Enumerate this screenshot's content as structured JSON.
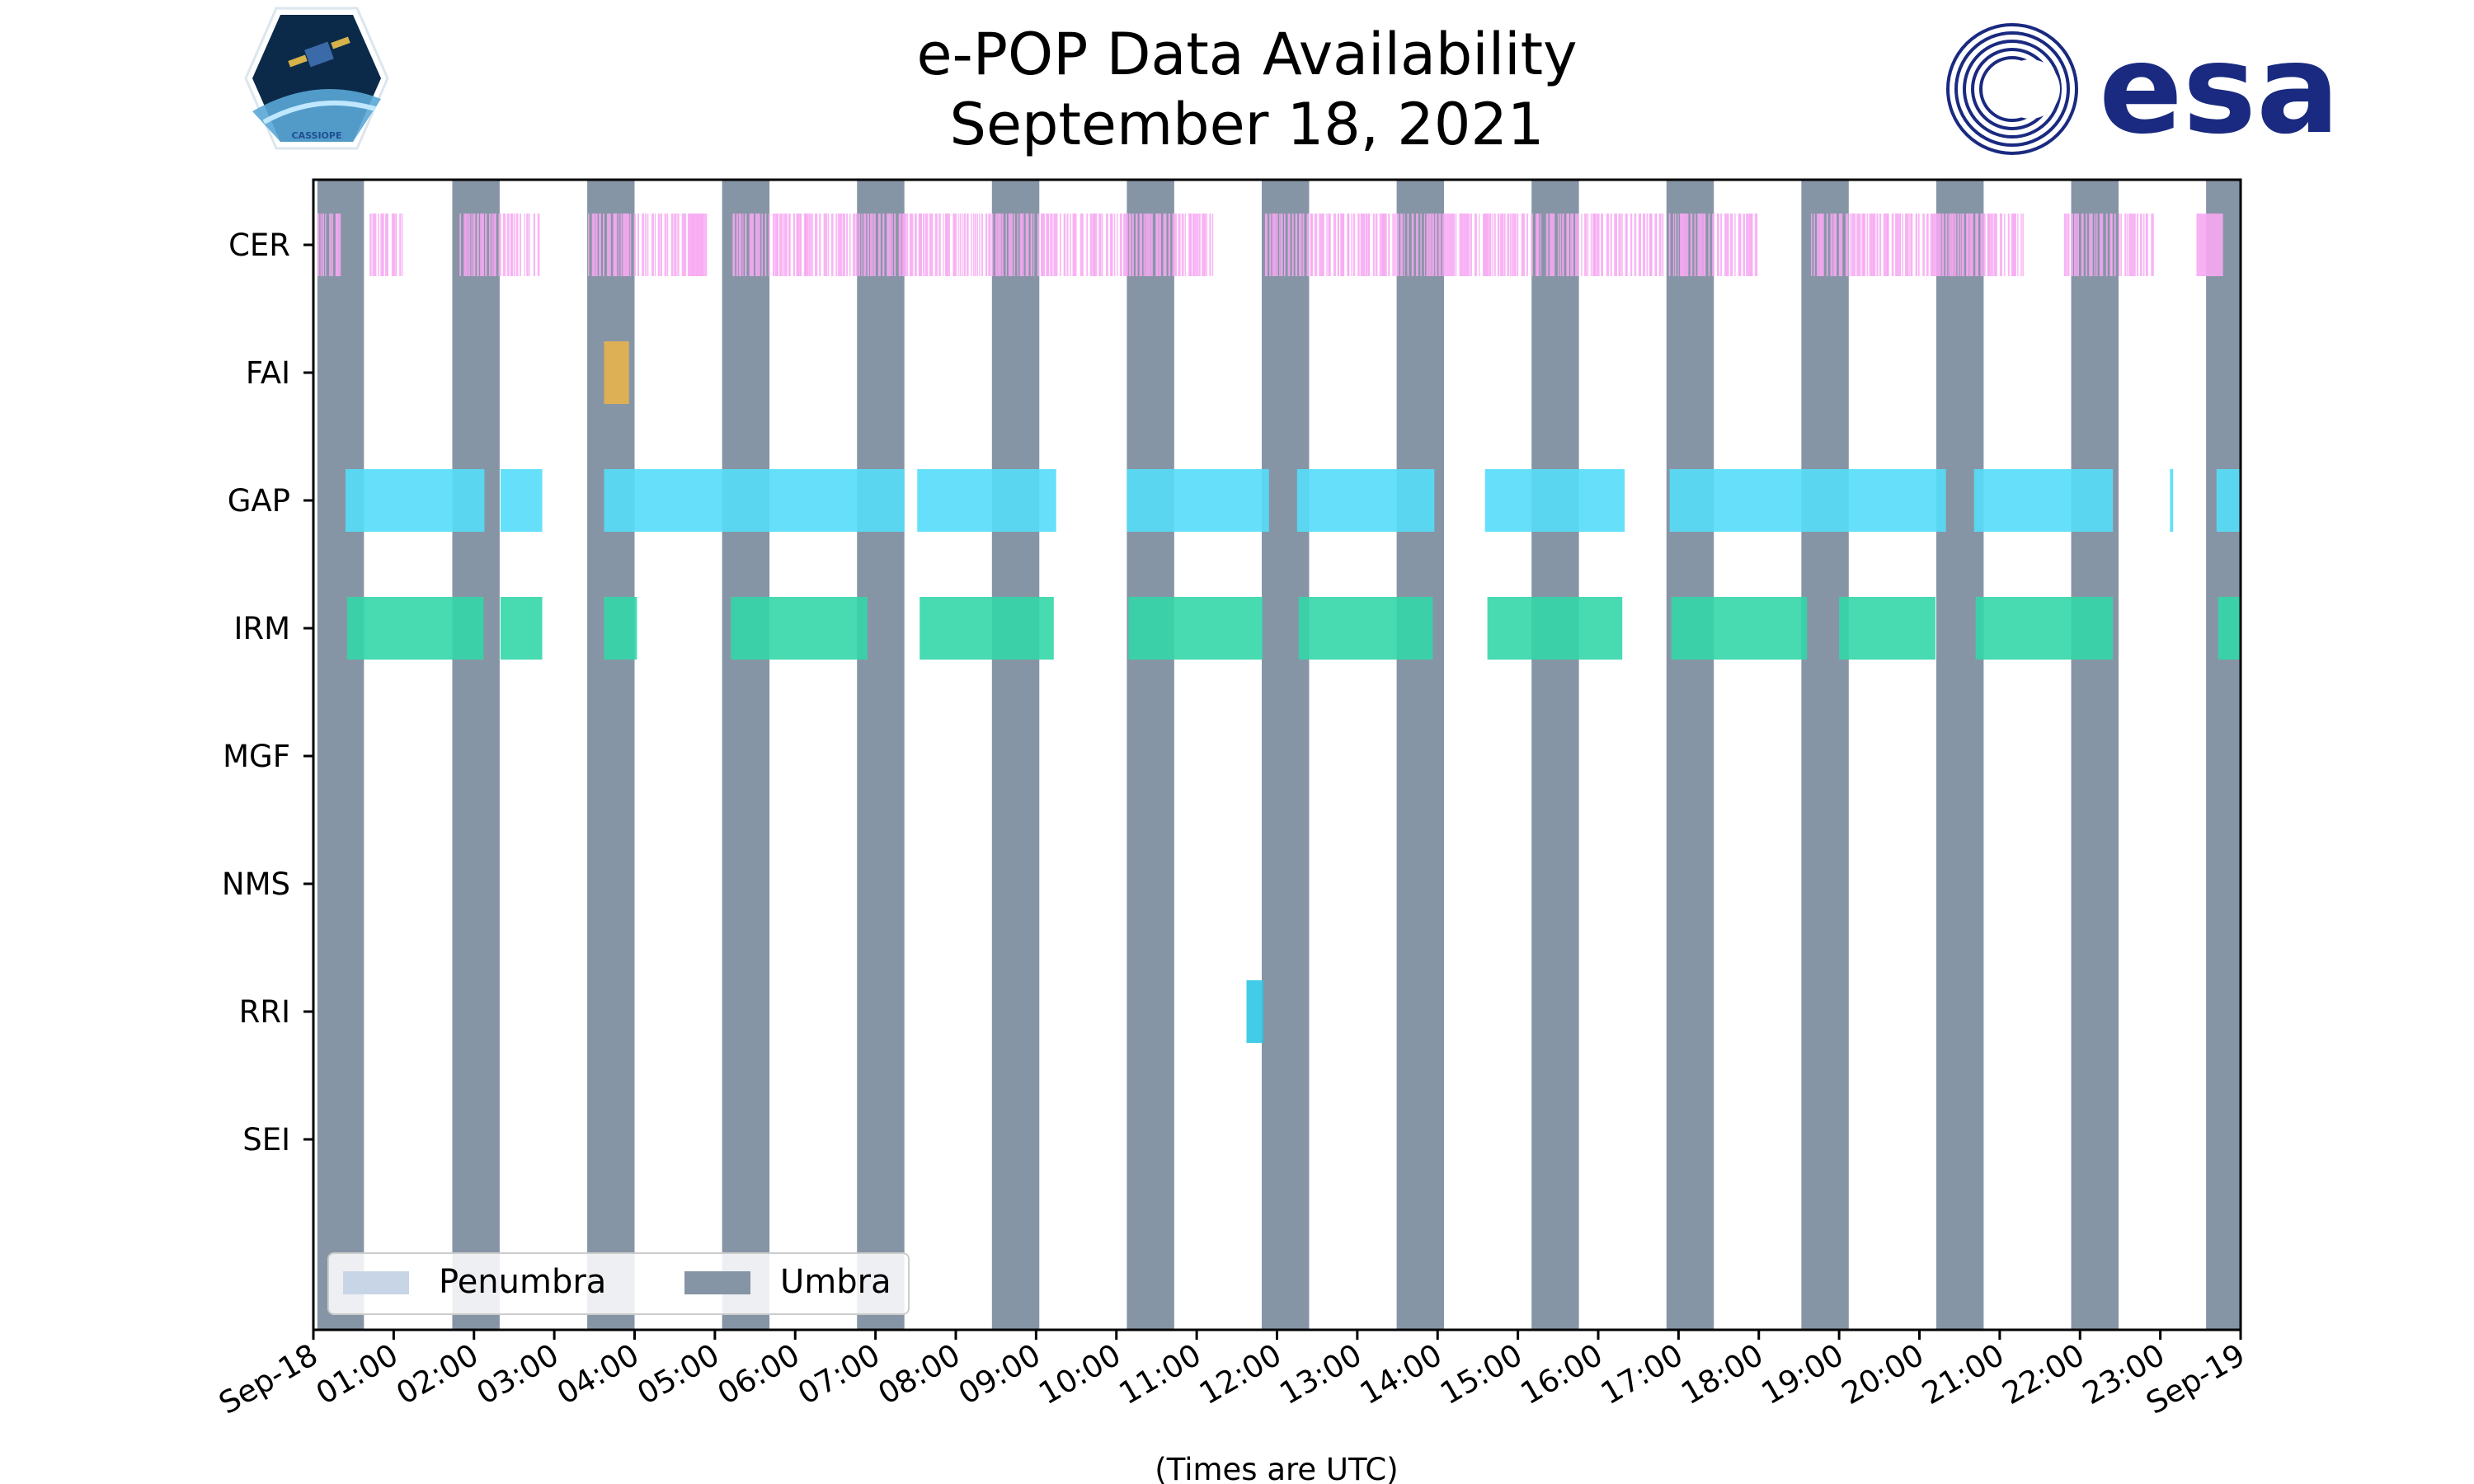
{
  "header": {
    "title_line1": "e-POP Data Availability",
    "title_line2": "September 18, 2021",
    "mission_badge_text": "CASSIOPE",
    "agency_logo_text": "esa"
  },
  "colors": {
    "umbra": "#8695a5",
    "penumbra": "#c8d5e6",
    "CER": "#f7a8f2",
    "FAI": "#e8b24c",
    "GAP": "#55ddf9",
    "IRM": "#34d6a8",
    "RRI": "#2ec7e6",
    "esa_blue": "#1a2a80"
  },
  "chart_data": {
    "type": "timeline",
    "title": "e-POP Data Availability\nSeptember 18, 2021",
    "xlabel": "(Times are UTC)",
    "x_unit": "hours UTC",
    "xlim": [
      0,
      24
    ],
    "x_ticks": [
      0,
      1,
      2,
      3,
      4,
      5,
      6,
      7,
      8,
      9,
      10,
      11,
      12,
      13,
      14,
      15,
      16,
      17,
      18,
      19,
      20,
      21,
      22,
      23,
      24
    ],
    "x_tick_labels": [
      "Sep-18",
      "01:00",
      "02:00",
      "03:00",
      "04:00",
      "05:00",
      "06:00",
      "07:00",
      "08:00",
      "09:00",
      "10:00",
      "11:00",
      "12:00",
      "13:00",
      "14:00",
      "15:00",
      "16:00",
      "17:00",
      "18:00",
      "19:00",
      "20:00",
      "21:00",
      "22:00",
      "23:00",
      "Sep-19"
    ],
    "instruments": [
      "CER",
      "FAI",
      "GAP",
      "IRM",
      "MGF",
      "NMS",
      "RRI",
      "SEI"
    ],
    "umbra_intervals": [
      [
        0.05,
        0.63
      ],
      [
        1.73,
        2.32
      ],
      [
        3.41,
        4.0
      ],
      [
        5.09,
        5.68
      ],
      [
        6.77,
        7.36
      ],
      [
        8.45,
        9.04
      ],
      [
        10.13,
        10.72
      ],
      [
        11.81,
        12.4
      ],
      [
        13.49,
        14.08
      ],
      [
        15.17,
        15.76
      ],
      [
        16.85,
        17.44
      ],
      [
        18.53,
        19.12
      ],
      [
        20.21,
        20.8
      ],
      [
        21.89,
        22.48
      ],
      [
        23.57,
        24.0
      ]
    ],
    "penumbra_intervals": [],
    "legend": {
      "position": "lower-left",
      "entries": [
        "Penumbra",
        "Umbra"
      ]
    },
    "series": [
      {
        "name": "CER",
        "style": "ticks",
        "intervals": [
          [
            0.05,
            0.32
          ],
          [
            0.7,
            1.12
          ],
          [
            1.82,
            2.8
          ],
          [
            3.42,
            4.9
          ],
          [
            5.22,
            7.6
          ],
          [
            7.62,
            11.2
          ],
          [
            11.85,
            15.3
          ],
          [
            15.35,
            16.8
          ],
          [
            16.88,
            17.95
          ],
          [
            18.65,
            20.95
          ],
          [
            21.0,
            21.3
          ],
          [
            21.8,
            22.9
          ]
        ],
        "solid_blocks": [
          [
            4.68,
            4.85
          ],
          [
            23.45,
            23.78
          ]
        ]
      },
      {
        "name": "FAI",
        "style": "bars",
        "intervals": [
          [
            3.62,
            3.93
          ]
        ]
      },
      {
        "name": "GAP",
        "style": "bars",
        "intervals": [
          [
            0.4,
            2.13
          ],
          [
            2.33,
            2.85
          ],
          [
            3.62,
            7.36
          ],
          [
            7.52,
            9.25
          ],
          [
            10.13,
            11.9
          ],
          [
            12.25,
            13.96
          ],
          [
            14.59,
            16.33
          ],
          [
            16.89,
            20.33
          ],
          [
            20.68,
            22.41
          ],
          [
            23.12,
            23.16
          ],
          [
            23.7,
            24.0
          ]
        ]
      },
      {
        "name": "IRM",
        "style": "bars",
        "intervals": [
          [
            0.42,
            2.12
          ],
          [
            2.33,
            2.85
          ],
          [
            3.62,
            4.03
          ],
          [
            5.2,
            6.9
          ],
          [
            7.55,
            9.22
          ],
          [
            10.15,
            11.82
          ],
          [
            12.27,
            13.94
          ],
          [
            14.62,
            16.3
          ],
          [
            16.91,
            18.6
          ],
          [
            19.0,
            20.2
          ],
          [
            20.7,
            22.41
          ],
          [
            23.72,
            24.0
          ]
        ]
      },
      {
        "name": "MGF",
        "style": "bars",
        "intervals": []
      },
      {
        "name": "NMS",
        "style": "bars",
        "intervals": []
      },
      {
        "name": "RRI",
        "style": "bars",
        "intervals": [
          [
            11.62,
            11.83
          ]
        ]
      },
      {
        "name": "SEI",
        "style": "bars",
        "intervals": []
      }
    ]
  }
}
